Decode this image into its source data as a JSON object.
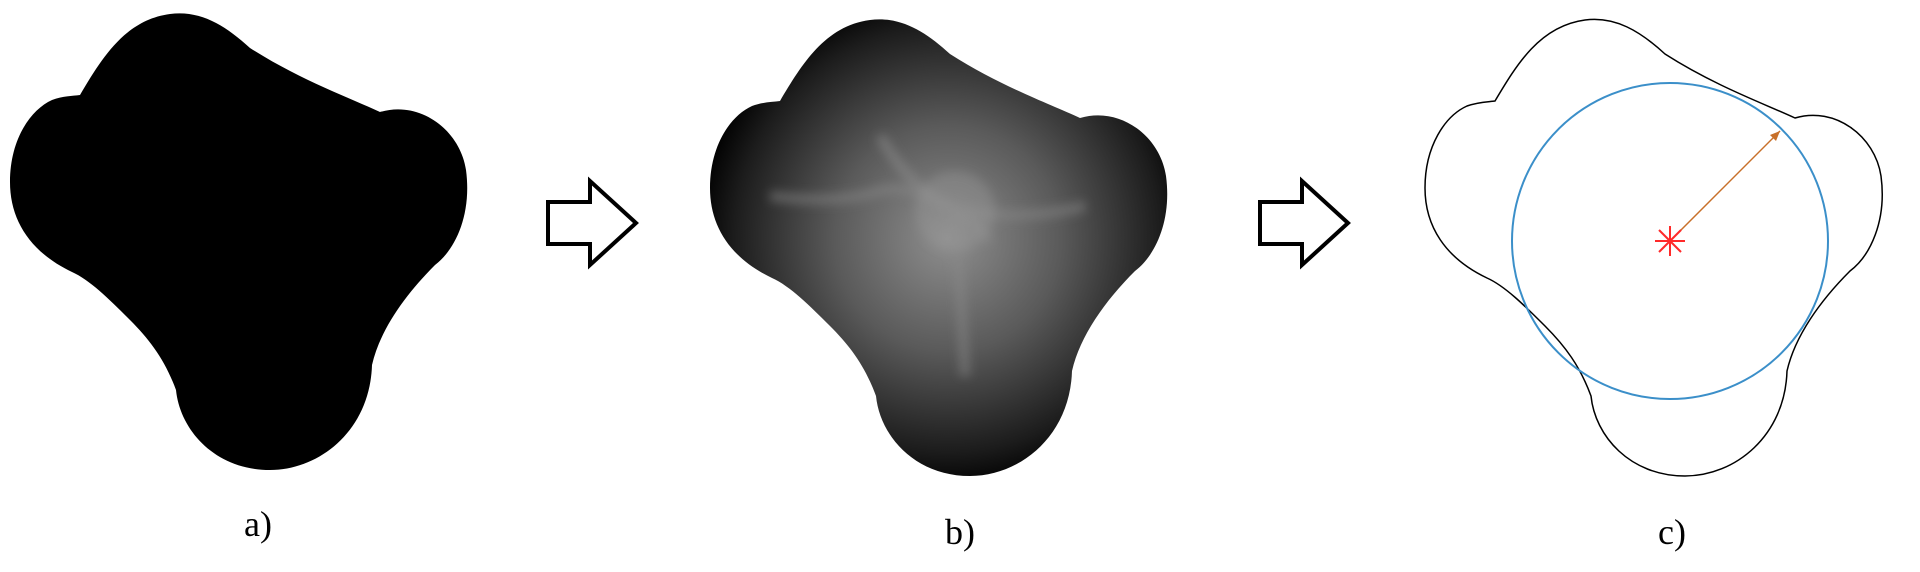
{
  "panels": [
    {
      "id": "a",
      "label": "a)"
    },
    {
      "id": "b",
      "label": "b)"
    },
    {
      "id": "c",
      "label": "c)"
    }
  ],
  "colors": {
    "shape_fill": "#000000",
    "distance_core": "#9a9a9a",
    "outline": "#000000",
    "inscribed_circle": "#3b8fc9",
    "radius_arrow": "#c8702a",
    "center_marker": "#ff2a2a",
    "arrow_outline": "#000000"
  }
}
